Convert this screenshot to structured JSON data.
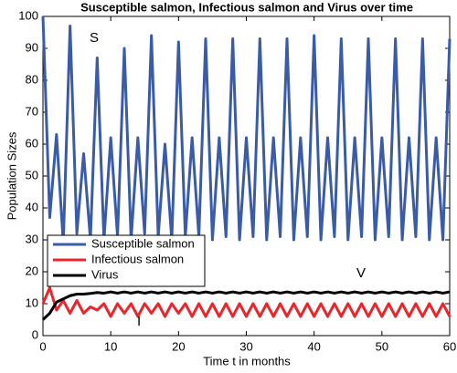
{
  "chart_data": {
    "type": "line",
    "title": "Susceptible salmon, Infectious salmon and Virus over time",
    "x_label": "Time t in months",
    "y_label": "Population Sizes",
    "x": [
      0,
      1,
      2,
      3,
      4,
      5,
      6,
      7,
      8,
      9,
      10,
      11,
      12,
      13,
      14,
      15,
      16,
      17,
      18,
      19,
      20,
      21,
      22,
      23,
      24,
      25,
      26,
      27,
      28,
      29,
      30,
      31,
      32,
      33,
      34,
      35,
      36,
      37,
      38,
      39,
      40,
      41,
      42,
      43,
      44,
      45,
      46,
      47,
      48,
      49,
      50,
      51,
      52,
      53,
      54,
      55,
      56,
      57,
      58,
      59,
      60
    ],
    "series": [
      {
        "name": "Susceptible salmon",
        "color": "#3a5ba8",
        "values": [
          100,
          37,
          63,
          29,
          97,
          32,
          57,
          30,
          87,
          30,
          62,
          31,
          90,
          30,
          62,
          32,
          94,
          31,
          60,
          30,
          92,
          31,
          62,
          31,
          93,
          30,
          62,
          31,
          93,
          30,
          62,
          31,
          93,
          30,
          62,
          31,
          93,
          30,
          62,
          31,
          94,
          30,
          62,
          31,
          93,
          30,
          62,
          31,
          93,
          30,
          62,
          31,
          93,
          30,
          62,
          31,
          93,
          30,
          62,
          30,
          93
        ]
      },
      {
        "name": "Infectious salmon",
        "color": "#e8262c",
        "values": [
          10,
          15,
          8,
          11,
          7,
          11,
          7,
          9,
          8,
          10,
          6,
          10,
          7,
          10,
          6,
          10,
          7,
          10,
          6,
          10,
          7,
          10,
          6,
          10,
          6,
          10,
          6,
          10,
          6,
          10,
          6,
          10,
          6,
          10,
          6,
          10,
          6,
          10,
          6,
          10,
          6,
          10,
          6,
          10,
          6,
          10,
          6,
          10,
          6,
          10,
          6,
          10,
          6,
          10,
          6,
          10,
          6,
          10,
          6,
          10,
          6
        ]
      },
      {
        "name": "Virus",
        "color": "#000000",
        "values": [
          5,
          7,
          10.5,
          11.5,
          12.5,
          13,
          13,
          13.2,
          13.5,
          13.3,
          13.7,
          13.3,
          13.7,
          13.3,
          13.7,
          13.3,
          13.7,
          13.3,
          13.7,
          13.3,
          13.7,
          13.3,
          13.7,
          13.3,
          13.7,
          13.3,
          13.7,
          13.3,
          13.7,
          13.3,
          13.7,
          13.3,
          13.7,
          13.3,
          13.7,
          13.3,
          13.7,
          13.3,
          13.7,
          13.3,
          13.7,
          13.3,
          13.7,
          13.3,
          13.7,
          13.3,
          13.7,
          13.3,
          13.7,
          13.3,
          13.7,
          13.3,
          13.7,
          13.3,
          13.7,
          13.3,
          13.7,
          13.3,
          13.7,
          13.3,
          13.7
        ]
      }
    ],
    "annotations": [
      "S",
      "V",
      "I"
    ],
    "xlim": [
      0,
      60
    ],
    "xticks": [
      0,
      10,
      20,
      30,
      40,
      50,
      60
    ],
    "ylim": [
      0,
      100
    ],
    "yticks": [
      0,
      10,
      20,
      30,
      40,
      50,
      60,
      70,
      80,
      90,
      100
    ],
    "legend": "lower left"
  }
}
